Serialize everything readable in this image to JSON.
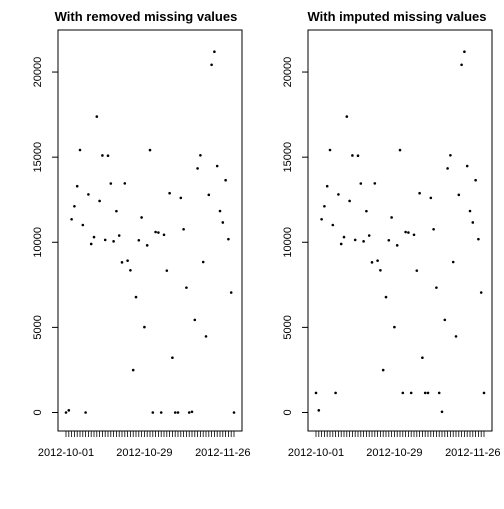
{
  "chart_data": [
    {
      "type": "scatter",
      "title": "With removed missing values",
      "x_start": "2012-10-01",
      "x_end": "2012-11-30",
      "x_tick_labels": [
        "2012-10-01",
        "2012-10-29",
        "2012-11-26"
      ],
      "y_ticks": [
        0,
        5000,
        10000,
        15000,
        20000
      ],
      "ylim": [
        -500,
        22000
      ],
      "grid": false,
      "points": [
        {
          "x": "2012-10-01",
          "y": 0
        },
        {
          "x": "2012-10-02",
          "y": 126
        },
        {
          "x": "2012-10-03",
          "y": 11352
        },
        {
          "x": "2012-10-04",
          "y": 12116
        },
        {
          "x": "2012-10-05",
          "y": 13294
        },
        {
          "x": "2012-10-06",
          "y": 15420
        },
        {
          "x": "2012-10-07",
          "y": 11015
        },
        {
          "x": "2012-10-08",
          "y": 0
        },
        {
          "x": "2012-10-09",
          "y": 12811
        },
        {
          "x": "2012-10-10",
          "y": 9900
        },
        {
          "x": "2012-10-11",
          "y": 10304
        },
        {
          "x": "2012-10-12",
          "y": 17382
        },
        {
          "x": "2012-10-13",
          "y": 12426
        },
        {
          "x": "2012-10-14",
          "y": 15098
        },
        {
          "x": "2012-10-15",
          "y": 10139
        },
        {
          "x": "2012-10-16",
          "y": 15084
        },
        {
          "x": "2012-10-17",
          "y": 13452
        },
        {
          "x": "2012-10-18",
          "y": 10056
        },
        {
          "x": "2012-10-19",
          "y": 11829
        },
        {
          "x": "2012-10-20",
          "y": 10395
        },
        {
          "x": "2012-10-21",
          "y": 8821
        },
        {
          "x": "2012-10-22",
          "y": 13460
        },
        {
          "x": "2012-10-23",
          "y": 8918
        },
        {
          "x": "2012-10-24",
          "y": 8355
        },
        {
          "x": "2012-10-25",
          "y": 2492
        },
        {
          "x": "2012-10-26",
          "y": 6778
        },
        {
          "x": "2012-10-27",
          "y": 10119
        },
        {
          "x": "2012-10-28",
          "y": 11458
        },
        {
          "x": "2012-10-29",
          "y": 5018
        },
        {
          "x": "2012-10-30",
          "y": 9819
        },
        {
          "x": "2012-10-31",
          "y": 15414
        },
        {
          "x": "2012-11-01",
          "y": 0
        },
        {
          "x": "2012-11-02",
          "y": 10600
        },
        {
          "x": "2012-11-03",
          "y": 10571
        },
        {
          "x": "2012-11-04",
          "y": 0
        },
        {
          "x": "2012-11-05",
          "y": 10439
        },
        {
          "x": "2012-11-06",
          "y": 8334
        },
        {
          "x": "2012-11-07",
          "y": 12883
        },
        {
          "x": "2012-11-08",
          "y": 3219
        },
        {
          "x": "2012-11-09",
          "y": 0
        },
        {
          "x": "2012-11-10",
          "y": 0
        },
        {
          "x": "2012-11-11",
          "y": 12608
        },
        {
          "x": "2012-11-12",
          "y": 10765
        },
        {
          "x": "2012-11-13",
          "y": 7336
        },
        {
          "x": "2012-11-14",
          "y": 0
        },
        {
          "x": "2012-11-15",
          "y": 41
        },
        {
          "x": "2012-11-16",
          "y": 5441
        },
        {
          "x": "2012-11-17",
          "y": 14339
        },
        {
          "x": "2012-11-18",
          "y": 15110
        },
        {
          "x": "2012-11-19",
          "y": 8841
        },
        {
          "x": "2012-11-20",
          "y": 4472
        },
        {
          "x": "2012-11-21",
          "y": 12787
        },
        {
          "x": "2012-11-22",
          "y": 20427
        },
        {
          "x": "2012-11-23",
          "y": 21194
        },
        {
          "x": "2012-11-24",
          "y": 14478
        },
        {
          "x": "2012-11-25",
          "y": 11834
        },
        {
          "x": "2012-11-26",
          "y": 11162
        },
        {
          "x": "2012-11-27",
          "y": 13646
        },
        {
          "x": "2012-11-28",
          "y": 10183
        },
        {
          "x": "2012-11-29",
          "y": 7047
        },
        {
          "x": "2012-11-30",
          "y": 0
        }
      ]
    },
    {
      "type": "scatter",
      "title": "With imputed missing values",
      "x_start": "2012-10-01",
      "x_end": "2012-11-30",
      "x_tick_labels": [
        "2012-10-01",
        "2012-10-29",
        "2012-11-26"
      ],
      "y_ticks": [
        0,
        5000,
        10000,
        15000,
        20000
      ],
      "ylim": [
        -500,
        22000
      ],
      "grid": false,
      "points": [
        {
          "x": "2012-10-01",
          "y": 1150
        },
        {
          "x": "2012-10-02",
          "y": 126
        },
        {
          "x": "2012-10-03",
          "y": 11352
        },
        {
          "x": "2012-10-04",
          "y": 12116
        },
        {
          "x": "2012-10-05",
          "y": 13294
        },
        {
          "x": "2012-10-06",
          "y": 15420
        },
        {
          "x": "2012-10-07",
          "y": 11015
        },
        {
          "x": "2012-10-08",
          "y": 1150
        },
        {
          "x": "2012-10-09",
          "y": 12811
        },
        {
          "x": "2012-10-10",
          "y": 9900
        },
        {
          "x": "2012-10-11",
          "y": 10304
        },
        {
          "x": "2012-10-12",
          "y": 17382
        },
        {
          "x": "2012-10-13",
          "y": 12426
        },
        {
          "x": "2012-10-14",
          "y": 15098
        },
        {
          "x": "2012-10-15",
          "y": 10139
        },
        {
          "x": "2012-10-16",
          "y": 15084
        },
        {
          "x": "2012-10-17",
          "y": 13452
        },
        {
          "x": "2012-10-18",
          "y": 10056
        },
        {
          "x": "2012-10-19",
          "y": 11829
        },
        {
          "x": "2012-10-20",
          "y": 10395
        },
        {
          "x": "2012-10-21",
          "y": 8821
        },
        {
          "x": "2012-10-22",
          "y": 13460
        },
        {
          "x": "2012-10-23",
          "y": 8918
        },
        {
          "x": "2012-10-24",
          "y": 8355
        },
        {
          "x": "2012-10-25",
          "y": 2492
        },
        {
          "x": "2012-10-26",
          "y": 6778
        },
        {
          "x": "2012-10-27",
          "y": 10119
        },
        {
          "x": "2012-10-28",
          "y": 11458
        },
        {
          "x": "2012-10-29",
          "y": 5018
        },
        {
          "x": "2012-10-30",
          "y": 9819
        },
        {
          "x": "2012-10-31",
          "y": 15414
        },
        {
          "x": "2012-11-01",
          "y": 1150
        },
        {
          "x": "2012-11-02",
          "y": 10600
        },
        {
          "x": "2012-11-03",
          "y": 10571
        },
        {
          "x": "2012-11-04",
          "y": 1150
        },
        {
          "x": "2012-11-05",
          "y": 10439
        },
        {
          "x": "2012-11-06",
          "y": 8334
        },
        {
          "x": "2012-11-07",
          "y": 12883
        },
        {
          "x": "2012-11-08",
          "y": 3219
        },
        {
          "x": "2012-11-09",
          "y": 1150
        },
        {
          "x": "2012-11-10",
          "y": 1150
        },
        {
          "x": "2012-11-11",
          "y": 12608
        },
        {
          "x": "2012-11-12",
          "y": 10765
        },
        {
          "x": "2012-11-13",
          "y": 7336
        },
        {
          "x": "2012-11-14",
          "y": 1150
        },
        {
          "x": "2012-11-15",
          "y": 41
        },
        {
          "x": "2012-11-16",
          "y": 5441
        },
        {
          "x": "2012-11-17",
          "y": 14339
        },
        {
          "x": "2012-11-18",
          "y": 15110
        },
        {
          "x": "2012-11-19",
          "y": 8841
        },
        {
          "x": "2012-11-20",
          "y": 4472
        },
        {
          "x": "2012-11-21",
          "y": 12787
        },
        {
          "x": "2012-11-22",
          "y": 20427
        },
        {
          "x": "2012-11-23",
          "y": 21194
        },
        {
          "x": "2012-11-24",
          "y": 14478
        },
        {
          "x": "2012-11-25",
          "y": 11834
        },
        {
          "x": "2012-11-26",
          "y": 11162
        },
        {
          "x": "2012-11-27",
          "y": 13646
        },
        {
          "x": "2012-11-28",
          "y": 10183
        },
        {
          "x": "2012-11-29",
          "y": 7047
        },
        {
          "x": "2012-11-30",
          "y": 1150
        }
      ]
    }
  ]
}
